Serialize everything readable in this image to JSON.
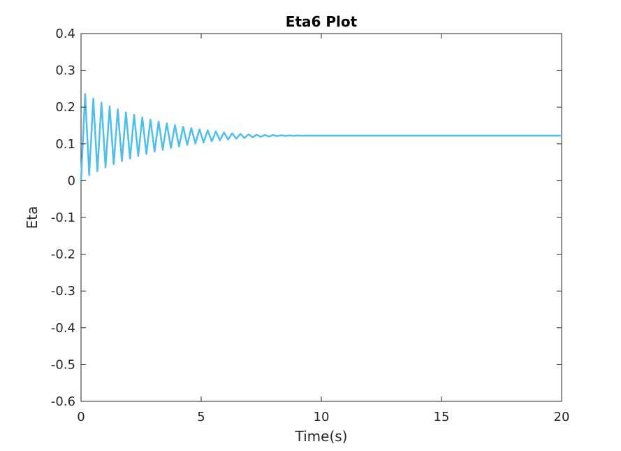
{
  "chart_data": {
    "type": "line",
    "title": "Eta6 Plot",
    "xlabel": "Time(s)",
    "ylabel": "Eta",
    "xlim": [
      0,
      20
    ],
    "ylim": [
      -0.6,
      0.4
    ],
    "xticks": [
      0,
      5,
      10,
      15,
      20
    ],
    "yticks": [
      0.4,
      0.3,
      0.2,
      0.1,
      0,
      -0.1,
      -0.2,
      -0.3,
      -0.4,
      -0.5,
      -0.6
    ],
    "xtick_labels": [
      "0",
      "5",
      "10",
      "15",
      "20"
    ],
    "ytick_labels": [
      "0.4",
      "0.3",
      "0.2",
      "0.1",
      "0",
      "-0.1",
      "-0.2",
      "-0.3",
      "-0.4",
      "-0.5",
      "-0.6"
    ],
    "grid": false,
    "line_color": "#4DBEEE",
    "series": [
      {
        "x": [
          0,
          0.17,
          0.34,
          0.51,
          0.68,
          0.85,
          1.02,
          1.19,
          1.36,
          1.53,
          1.7,
          1.87,
          2.04,
          2.21,
          2.38,
          2.55,
          2.72,
          2.89,
          3.06,
          3.23,
          3.4,
          3.57,
          3.74,
          3.91,
          4.08,
          4.25,
          4.42,
          4.59,
          4.76,
          4.93,
          5.1,
          5.27,
          5.44,
          5.61,
          5.78,
          5.95,
          6.12,
          6.29,
          6.46,
          6.63,
          6.8,
          6.97,
          7.14,
          7.31,
          7.48,
          7.65,
          7.82,
          7.99,
          8.16,
          8.33,
          8.5,
          8.67,
          8.84,
          9.01,
          9.18,
          9.35,
          9.52,
          9.69,
          9.86,
          10.03,
          10.2,
          10.37,
          10.54,
          10.71,
          10.88,
          11.05,
          11.22,
          11.39,
          11.56,
          11.73,
          11.9,
          12.07,
          12.24,
          12.41,
          12.58,
          12.75,
          12.92,
          13.09,
          13.26,
          13.43,
          13.6,
          13.77,
          13.94,
          14.11,
          14.28,
          14.45,
          14.62,
          14.79,
          14.96,
          15.13,
          15.3,
          15.47,
          15.64,
          15.81,
          15.98,
          20
        ],
        "y": [
          0.0,
          0.236,
          0.015,
          0.223,
          0.026,
          0.212,
          0.036,
          0.202,
          0.045,
          0.194,
          0.053,
          0.186,
          0.06,
          0.179,
          0.067,
          0.172,
          0.073,
          0.166,
          0.079,
          0.161,
          0.084,
          0.156,
          0.089,
          0.151,
          0.093,
          0.147,
          0.097,
          0.143,
          0.101,
          0.14,
          0.104,
          0.137,
          0.107,
          0.134,
          0.11,
          0.131,
          0.112,
          0.129,
          0.114,
          0.127,
          0.116,
          0.126,
          0.118,
          0.125,
          0.119,
          0.1245,
          0.12,
          0.124,
          0.121,
          0.1235,
          0.1215,
          0.123,
          0.122,
          0.1228,
          0.1222,
          0.1226,
          0.1224,
          0.1225,
          0.1224,
          0.1225,
          0.1224,
          0.1225,
          0.1224,
          0.1225,
          0.1224,
          0.1225,
          0.1224,
          0.1225,
          0.1224,
          0.1225,
          0.1224,
          0.1225,
          0.1224,
          0.1225,
          0.1224,
          0.1225,
          0.1224,
          0.1225,
          0.1224,
          0.1225,
          0.1224,
          0.1225,
          0.1224,
          0.1225,
          0.1224,
          0.1225,
          0.1224,
          0.1225,
          0.1224,
          0.1225,
          0.1224,
          0.1225,
          0.1224,
          0.1225,
          0.1224,
          0.1225
        ]
      }
    ]
  }
}
